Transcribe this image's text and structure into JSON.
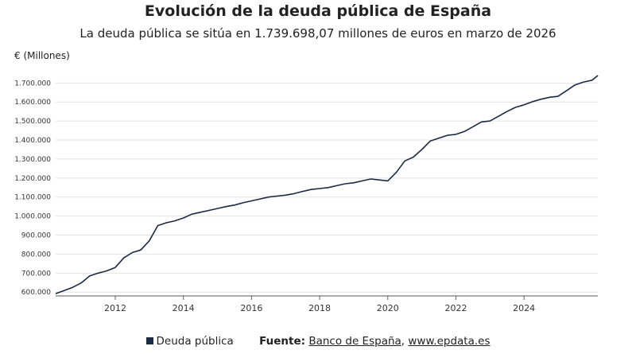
{
  "chart_data": {
    "type": "line",
    "title": "Evolución de la deuda pública de España",
    "subtitle": "La deuda pública se sitúa en 1.739.698,07 millones de euros en marzo de 2026",
    "ylabel": "€ (Millones)",
    "ylim": [
      580000,
      1760000
    ],
    "xlim": [
      "2010-04",
      "2026-03"
    ],
    "yticks": [
      "600.000",
      "700.000",
      "800.000",
      "900.000",
      "1.000.000",
      "1.100.000",
      "1.200.000",
      "1.300.000",
      "1.400.000",
      "1.500.000",
      "1.600.000",
      "1.700.000"
    ],
    "ytick_values": [
      600000,
      700000,
      800000,
      900000,
      1000000,
      1100000,
      1200000,
      1300000,
      1400000,
      1500000,
      1600000,
      1700000
    ],
    "xticks": [
      "2012",
      "2014",
      "2016",
      "2018",
      "2020",
      "2022",
      "2024"
    ],
    "grid": true,
    "legend": "bottom",
    "series": [
      {
        "name": "Deuda pública",
        "color": "#1b2a44",
        "x": [
          "2010-04",
          "2010-07",
          "2010-10",
          "2011-01",
          "2011-04",
          "2011-07",
          "2011-10",
          "2012-01",
          "2012-04",
          "2012-07",
          "2012-10",
          "2013-01",
          "2013-04",
          "2013-07",
          "2013-10",
          "2014-01",
          "2014-04",
          "2014-07",
          "2014-10",
          "2015-01",
          "2015-04",
          "2015-07",
          "2015-10",
          "2016-01",
          "2016-04",
          "2016-07",
          "2016-10",
          "2017-01",
          "2017-04",
          "2017-07",
          "2017-10",
          "2018-01",
          "2018-04",
          "2018-07",
          "2018-10",
          "2019-01",
          "2019-04",
          "2019-07",
          "2019-10",
          "2020-01",
          "2020-04",
          "2020-07",
          "2020-10",
          "2021-01",
          "2021-04",
          "2021-07",
          "2021-10",
          "2022-01",
          "2022-04",
          "2022-07",
          "2022-10",
          "2023-01",
          "2023-04",
          "2023-07",
          "2023-10",
          "2024-01",
          "2024-04",
          "2024-07",
          "2024-10",
          "2025-01",
          "2025-04",
          "2025-07",
          "2025-10",
          "2026-01",
          "2026-03"
        ],
        "values": [
          592000,
          608000,
          625000,
          648000,
          685000,
          700000,
          712000,
          730000,
          780000,
          808000,
          822000,
          870000,
          950000,
          965000,
          975000,
          990000,
          1010000,
          1020000,
          1030000,
          1040000,
          1050000,
          1058000,
          1070000,
          1080000,
          1090000,
          1100000,
          1105000,
          1110000,
          1118000,
          1130000,
          1140000,
          1145000,
          1150000,
          1160000,
          1170000,
          1175000,
          1185000,
          1195000,
          1190000,
          1185000,
          1230000,
          1290000,
          1310000,
          1350000,
          1395000,
          1410000,
          1425000,
          1430000,
          1445000,
          1470000,
          1495000,
          1500000,
          1525000,
          1550000,
          1572000,
          1585000,
          1602000,
          1615000,
          1625000,
          1630000,
          1660000,
          1690000,
          1705000,
          1715000,
          1739698
        ]
      }
    ]
  },
  "footer": {
    "legend_label": "Deuda pública",
    "source_label": "Fuente:",
    "source_1": "Banco de España",
    "separator": ",",
    "source_2": "www.epdata.es"
  }
}
